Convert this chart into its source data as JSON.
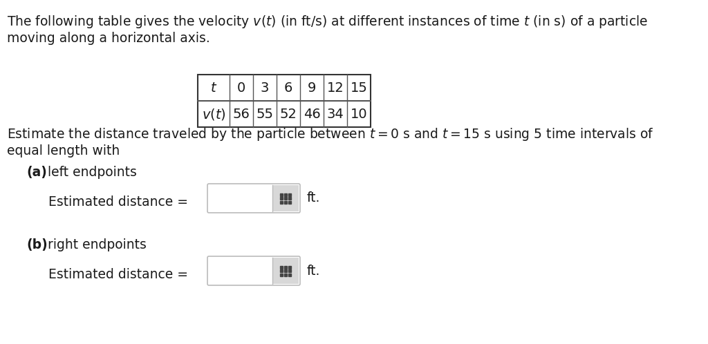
{
  "background_color": "#ffffff",
  "paragraph1_line1": "The following table gives the velocity $v(t)$ (in ft/s) at different instances of time $t$ (in s) of a particle",
  "paragraph1_line2": "moving along a horizontal axis.",
  "table_t_values": [
    "0",
    "3",
    "6",
    "9",
    "12",
    "15"
  ],
  "table_vt_values": [
    "56",
    "55",
    "52",
    "46",
    "34",
    "10"
  ],
  "paragraph2_line1": "Estimate the distance traveled by the particle between $t = 0$ s and $t = 15$ s using $5$ time intervals of",
  "paragraph2_line2": "equal length with",
  "part_a_label_bold": "(a)",
  "part_a_label_normal": " left endpoints",
  "part_a_est": "Estimated distance =",
  "part_a_unit": "ft.",
  "part_b_label_bold": "(b)",
  "part_b_label_normal": " right endpoints",
  "part_b_est": "Estimated distance =",
  "part_b_unit": "ft.",
  "font_size_main": 13.5,
  "font_size_table": 14.0,
  "input_box_color": "#f5f5f5",
  "input_box_border": "#bbbbbb",
  "icon_bg_color": "#d8d8d8",
  "grid_icon_color": "#444444",
  "text_color": "#1a1a1a"
}
